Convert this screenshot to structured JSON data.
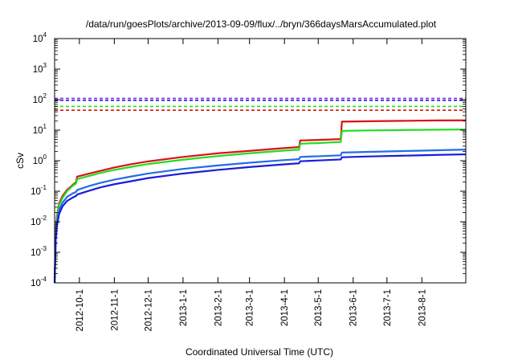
{
  "chart_data": {
    "type": "line",
    "title": "/data/run/goesPlots/archive/2013-09-09/flux/../bryn/366daysMarsAccumulated.plot",
    "xlabel": "Coordinated Universal Time (UTC)",
    "ylabel": "cSv",
    "y_scale": "log",
    "ylim": [
      0.0001,
      10000
    ],
    "y_ticks": [
      {
        "value": 0.0001,
        "base": "10",
        "exp": "-4"
      },
      {
        "value": 0.001,
        "base": "10",
        "exp": "-3"
      },
      {
        "value": 0.01,
        "base": "10",
        "exp": "-2"
      },
      {
        "value": 0.1,
        "base": "10",
        "exp": "-1"
      },
      {
        "value": 1,
        "base": "10",
        "exp": "0"
      },
      {
        "value": 10,
        "base": "10",
        "exp": "1"
      },
      {
        "value": 100,
        "base": "10",
        "exp": "2"
      },
      {
        "value": 1000,
        "base": "10",
        "exp": "3"
      },
      {
        "value": 10000,
        "base": "10",
        "exp": "4"
      }
    ],
    "xlim": [
      "2012-09-09",
      "2013-09-09"
    ],
    "x_ticks": [
      {
        "date": "2012-10-01",
        "label": "2012-10-1"
      },
      {
        "date": "2012-11-01",
        "label": "2012-11-1"
      },
      {
        "date": "2012-12-01",
        "label": "2012-12-1"
      },
      {
        "date": "2013-01-01",
        "label": "2013-1-1"
      },
      {
        "date": "2013-02-01",
        "label": "2013-2-1"
      },
      {
        "date": "2013-03-01",
        "label": "2013-3-1"
      },
      {
        "date": "2013-04-01",
        "label": "2013-4-1"
      },
      {
        "date": "2013-05-01",
        "label": "2013-5-1"
      },
      {
        "date": "2013-06-01",
        "label": "2013-6-1"
      },
      {
        "date": "2013-07-01",
        "label": "2013-7-1"
      },
      {
        "date": "2013-08-01",
        "label": "2013-8-1"
      }
    ],
    "grid": false,
    "legend": "none",
    "limits": [
      {
        "value": 110,
        "color": "#8a2be2"
      },
      {
        "value": 95,
        "color": "#1c1cdc"
      },
      {
        "value": 60,
        "color": "#22dd22"
      },
      {
        "value": 45,
        "color": "#dd1111"
      }
    ],
    "series": [
      {
        "color": "#dd1111",
        "points": [
          [
            "2012-09-09",
            0.0001
          ],
          [
            "2012-09-10",
            0.005
          ],
          [
            "2012-09-11",
            0.015
          ],
          [
            "2012-09-13",
            0.04
          ],
          [
            "2012-09-16",
            0.07
          ],
          [
            "2012-09-20",
            0.11
          ],
          [
            "2012-09-25",
            0.16
          ],
          [
            "2012-09-28",
            0.2
          ],
          [
            "2012-09-29",
            0.3
          ],
          [
            "2012-10-10",
            0.38
          ],
          [
            "2012-10-20",
            0.47
          ],
          [
            "2012-11-01",
            0.6
          ],
          [
            "2012-11-15",
            0.76
          ],
          [
            "2012-12-01",
            0.95
          ],
          [
            "2013-01-01",
            1.33
          ],
          [
            "2013-02-01",
            1.75
          ],
          [
            "2013-03-01",
            2.1
          ],
          [
            "2013-04-01",
            2.6
          ],
          [
            "2013-04-14",
            2.8
          ],
          [
            "2013-04-15",
            4.6
          ],
          [
            "2013-05-01",
            4.8
          ],
          [
            "2013-05-21",
            5.1
          ],
          [
            "2013-05-22",
            19
          ],
          [
            "2013-06-15",
            19.6
          ],
          [
            "2013-07-15",
            20.2
          ],
          [
            "2013-08-15",
            20.8
          ],
          [
            "2013-09-09",
            21
          ]
        ]
      },
      {
        "color": "#22dd22",
        "points": [
          [
            "2012-09-09",
            0.0001
          ],
          [
            "2012-09-10",
            0.004
          ],
          [
            "2012-09-11",
            0.013
          ],
          [
            "2012-09-13",
            0.035
          ],
          [
            "2012-09-16",
            0.06
          ],
          [
            "2012-09-20",
            0.1
          ],
          [
            "2012-09-25",
            0.15
          ],
          [
            "2012-09-28",
            0.18
          ],
          [
            "2012-09-29",
            0.25
          ],
          [
            "2012-10-10",
            0.32
          ],
          [
            "2012-10-20",
            0.4
          ],
          [
            "2012-11-01",
            0.5
          ],
          [
            "2012-11-15",
            0.62
          ],
          [
            "2012-12-01",
            0.78
          ],
          [
            "2013-01-01",
            1.08
          ],
          [
            "2013-02-01",
            1.42
          ],
          [
            "2013-03-01",
            1.75
          ],
          [
            "2013-04-01",
            2.15
          ],
          [
            "2013-04-14",
            2.3
          ],
          [
            "2013-04-15",
            3.6
          ],
          [
            "2013-05-01",
            3.8
          ],
          [
            "2013-05-21",
            4.1
          ],
          [
            "2013-05-22",
            9.5
          ],
          [
            "2013-06-15",
            9.8
          ],
          [
            "2013-07-15",
            10.1
          ],
          [
            "2013-08-15",
            10.4
          ],
          [
            "2013-09-09",
            10.6
          ]
        ]
      },
      {
        "color": "#1f6ee8",
        "points": [
          [
            "2012-09-09",
            0.0001
          ],
          [
            "2012-09-10",
            0.003
          ],
          [
            "2012-09-11",
            0.009
          ],
          [
            "2012-09-13",
            0.024
          ],
          [
            "2012-09-16",
            0.042
          ],
          [
            "2012-09-20",
            0.065
          ],
          [
            "2012-09-25",
            0.085
          ],
          [
            "2012-09-28",
            0.095
          ],
          [
            "2012-09-29",
            0.11
          ],
          [
            "2012-10-10",
            0.15
          ],
          [
            "2012-10-20",
            0.19
          ],
          [
            "2012-11-01",
            0.24
          ],
          [
            "2012-11-15",
            0.3
          ],
          [
            "2012-12-01",
            0.38
          ],
          [
            "2013-01-01",
            0.54
          ],
          [
            "2013-02-01",
            0.7
          ],
          [
            "2013-03-01",
            0.86
          ],
          [
            "2013-04-01",
            1.05
          ],
          [
            "2013-04-14",
            1.12
          ],
          [
            "2013-04-15",
            1.33
          ],
          [
            "2013-05-01",
            1.4
          ],
          [
            "2013-05-21",
            1.5
          ],
          [
            "2013-05-22",
            1.85
          ],
          [
            "2013-06-15",
            1.95
          ],
          [
            "2013-07-15",
            2.07
          ],
          [
            "2013-08-15",
            2.2
          ],
          [
            "2013-09-09",
            2.32
          ]
        ]
      },
      {
        "color": "#1c1cdc",
        "points": [
          [
            "2012-09-09",
            0.0001
          ],
          [
            "2012-09-10",
            0.0025
          ],
          [
            "2012-09-11",
            0.007
          ],
          [
            "2012-09-13",
            0.018
          ],
          [
            "2012-09-16",
            0.032
          ],
          [
            "2012-09-20",
            0.048
          ],
          [
            "2012-09-25",
            0.062
          ],
          [
            "2012-09-28",
            0.07
          ],
          [
            "2012-09-29",
            0.078
          ],
          [
            "2012-10-10",
            0.105
          ],
          [
            "2012-10-20",
            0.135
          ],
          [
            "2012-11-01",
            0.17
          ],
          [
            "2012-11-15",
            0.21
          ],
          [
            "2012-12-01",
            0.27
          ],
          [
            "2013-01-01",
            0.38
          ],
          [
            "2013-02-01",
            0.5
          ],
          [
            "2013-03-01",
            0.62
          ],
          [
            "2013-04-01",
            0.76
          ],
          [
            "2013-04-14",
            0.82
          ],
          [
            "2013-04-15",
            0.96
          ],
          [
            "2013-05-01",
            1.02
          ],
          [
            "2013-05-21",
            1.1
          ],
          [
            "2013-05-22",
            1.3
          ],
          [
            "2013-06-15",
            1.38
          ],
          [
            "2013-07-15",
            1.46
          ],
          [
            "2013-08-15",
            1.55
          ],
          [
            "2013-09-09",
            1.62
          ]
        ]
      }
    ]
  }
}
